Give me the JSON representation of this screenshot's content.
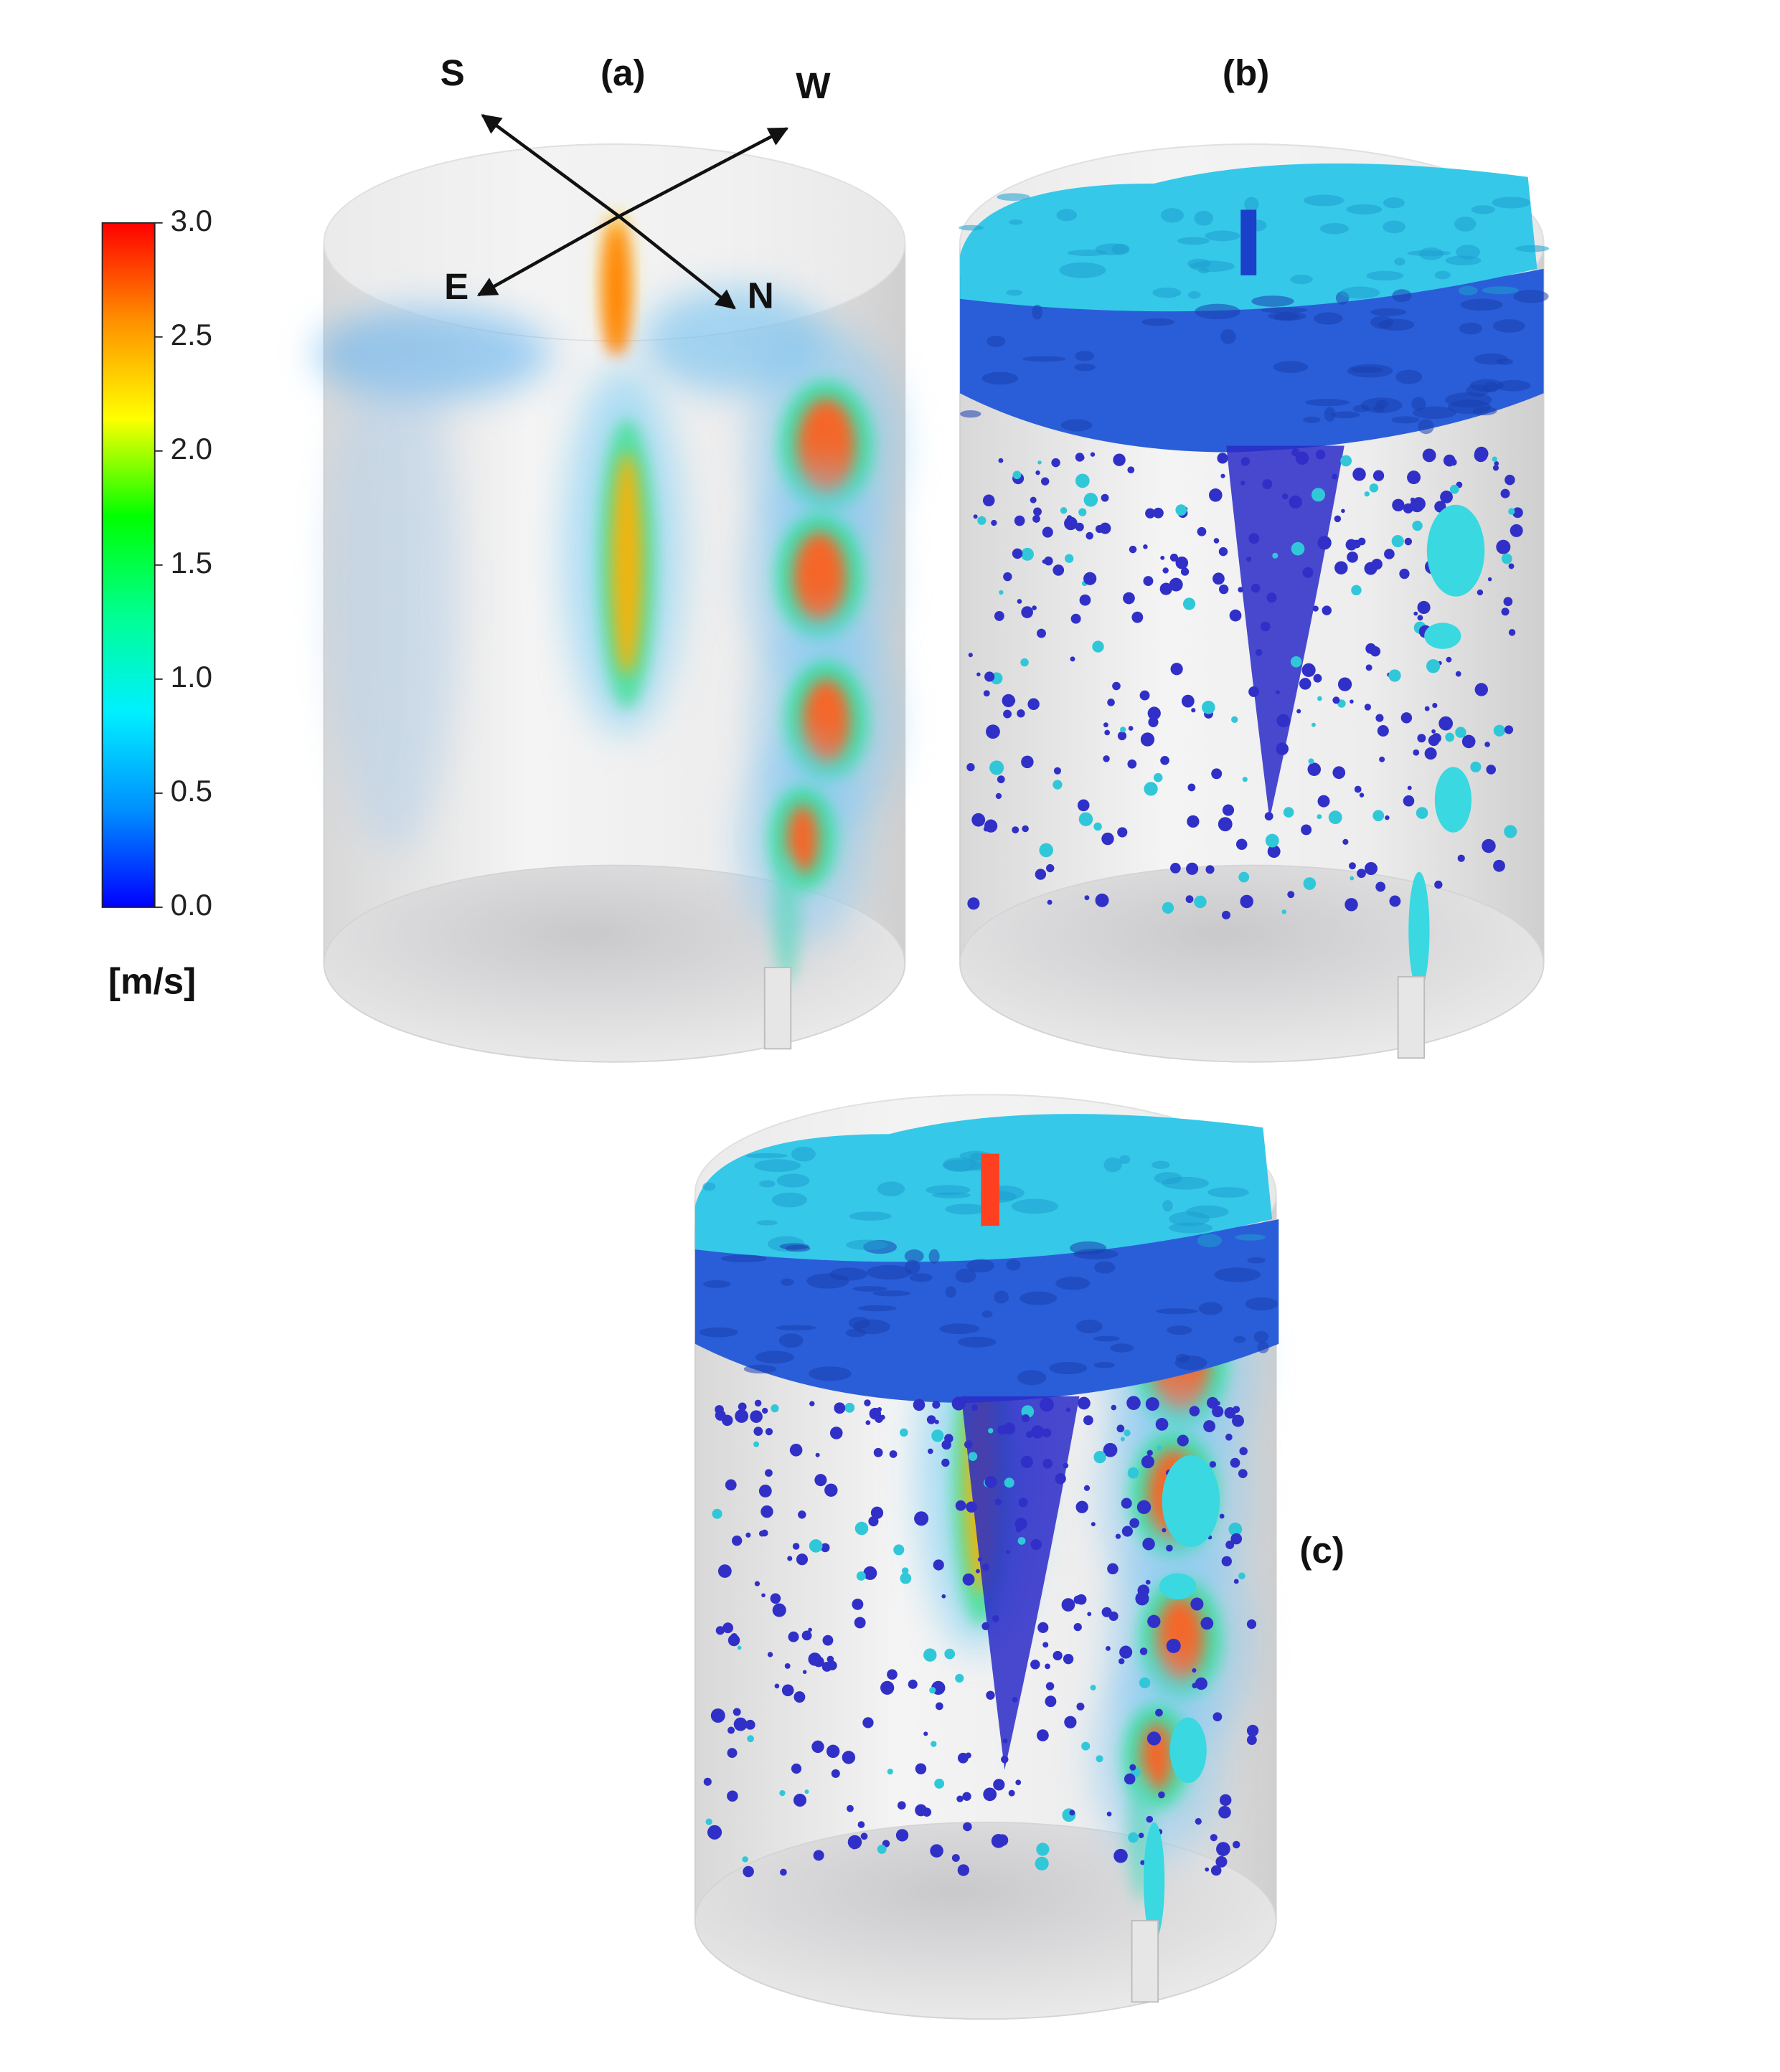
{
  "panels": [
    {
      "label": "(a)"
    },
    {
      "label": "(b)"
    },
    {
      "label": "(c)"
    }
  ],
  "compass": {
    "S": "S",
    "W": "W",
    "E": "E",
    "N": "N"
  },
  "colorbar": {
    "lim": [
      0,
      3
    ],
    "ticks": [
      {
        "value": 0,
        "label": "0.0"
      },
      {
        "value": 0.5,
        "label": "0.5"
      },
      {
        "value": 1,
        "label": "1.0"
      },
      {
        "value": 1.5,
        "label": "1.5"
      },
      {
        "value": 2,
        "label": "2.0"
      },
      {
        "value": 2.5,
        "label": "2.5"
      },
      {
        "value": 3,
        "label": "3.0"
      }
    ],
    "colors": [
      "#0000ff",
      "#0090ff",
      "#00f0ff",
      "#00ff90",
      "#00ff00",
      "#ffff00",
      "#ff9000",
      "#ff0000"
    ],
    "unit": "[m/s]"
  }
}
